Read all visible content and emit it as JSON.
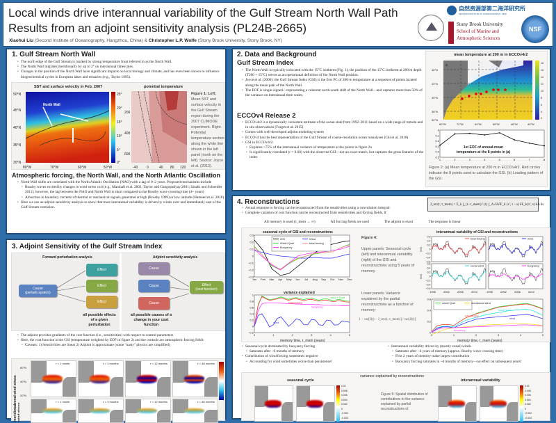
{
  "header": {
    "title_line1": "Local winds drive interannual variability of the Gulf Stream North Wall Path",
    "title_line2": "Results from an adjoint sensitivity analysis (PL24B-2665)",
    "author1": "Xiaohui Liu",
    "affil1": "(Second Institute of Oceanography, Hangzhou, China) &",
    "author2": "Christopher L.P. Wolfe",
    "affil2": "(Stony Brook University, Stony Brook, NY)",
    "logo_sio": "自然资源部第二海洋研究所",
    "logo_sio_en": "SECOND INSTITUTE OF OCEANOGRAPHY, MNR",
    "logo_sbu1": "Stony Brook University",
    "logo_sbu2": "School of Marine and",
    "logo_sbu3": "Atmospheric Sciences",
    "logo_nsf": "NSF"
  },
  "s1": {
    "heading": "1. Gulf Stream North Wall",
    "bullets": [
      "The north edge of the Gulf Stream is marked by strong temperature front referred to as the North Wall.",
      "The North Wall migrates meridionally by up to 2° on interannual timescales.",
      "Changes in the position of the North Wall have significant impacts on local biology and climate, and has even been shown to influence biogeochemical cycles in European lakes and estuaries (e.g., Taylor 1995)."
    ],
    "fig_left_title": "SST and surface velocity in Feb. 2007",
    "north_wall_label": "North Wall",
    "lat_ticks": [
      "50°N",
      "45°N",
      "40°N",
      "35°N",
      "30°N"
    ],
    "lon_ticks": [
      "80°W",
      "70°W",
      "60°W",
      "50°W"
    ],
    "cbar_ticks": [
      "25°",
      "20°",
      "15°",
      "10°",
      "5°",
      "0°"
    ],
    "fig_right_title": "potential temperature",
    "depth_ticks": [
      "200",
      "400",
      "600"
    ],
    "dist_ticks": [
      "-40",
      "0",
      "40",
      "80",
      "120"
    ],
    "caption_bold": "Figure 1: Left:",
    "caption": "Mean SST and surface velocity in the Gulf Stream region during the 2007 CLIMODE experiment. Right: Potential temperature section along the white line shown in the left panel (north on the left). Source: Joyce et al. (2013).",
    "sub_heading": "Atmospheric forcing, the North Wall, and the North Atlantic Oscillation",
    "bullets2": [
      "North Wall shifts are correlated with the North Atlantic Oscillation (NAO) with a lag of 0–2 years. Proposed mechanisms include"
    ],
    "subbullets2": [
      "Rossby waves excited by changes in wind stress curl (e.g., Marshall et al. 2001; Taylor and Gangopadyay 2001; Sasaki and Schneider 2011); however, the lag between the NAO and North Wall is short compared to the Rossby wave crossing time (4+ years)",
      "Advection in boundary currents of thermal or mechanical signals generated at high (Rossby 1999) or low latitude (Hameed et al. 2018)"
    ],
    "bullets3": [
      "Here we use an adjoint sensitivity analysis to show that most interannual variability is driven by winds over and immediately east of the Gulf Stream extension."
    ]
  },
  "s3": {
    "heading": "3. Adjoint Sensitivity of the Gulf Stream Index",
    "forward_title": "Forward perturbation analysis",
    "adjoint_title": "Adjoint sensitivity analysis",
    "cause_perturb": "Cause\n(perturb system)",
    "effect": "Effect",
    "cause": "Cause",
    "effect_cost": "Effect\n(cost function)",
    "forward_note": "all possible effects of a given perturbation",
    "adjoint_note": "all possible causes of a change in your cost function",
    "bullets": [
      "The adjoint provides gradients of the cost function (i.e., sensitivities) with respect to control parameters",
      "Here, the cost function is the GSI (temperature weighted by EOF in figure 2) and the controls are atmospheric forcing fields"
    ],
    "caveats": "Caveats: 1) Sensitivities are linear      2) Adjoint is approximate (some \"nasty\" physics are simplified)",
    "row_labels": [
      "zonal wind stress",
      "meridional wind stress"
    ],
    "lag_labels": [
      "τ = 1 month",
      "τ = 3 months",
      "τ = 12 months",
      "τ = 48 months"
    ],
    "lat_ticks": [
      "60°N",
      "40°N",
      "20°N"
    ]
  },
  "s2": {
    "heading": "2. Data and Background",
    "gsi_heading": "Gulf Stream Index",
    "gsi_bullets": [
      "The North Wall is typically colocated with the 15°C isotherm (Fig. 1); the position of the 15°C isotherm at 200 m depth (T200 = 15°C) serves as an operational definition of the North Wall position.",
      "Joyce et al. (2000): the Gulf Stream Index (GSI) is the first PC of 200-m temperature at a sequence of points located along the mean path of the North Wall.",
      "The EOF is single-signed—representing a coherent north-south shift of the North Wall—and captures more than 50% of the variance on interannual time scales."
    ],
    "ecco_heading": "ECCOv4 Release 2",
    "ecco_bullets": [
      "ECCOv4r2 is a dynamically consistent estimate of the ocean state from 1992–2011 based on a wide range of remote and in situ observations (Forget et al. 2015)",
      "Comes with well-developed adjoint modeling system",
      "ECCOv4 has the best representation of the Gulf Stream of coarse-resolution ocean reanalyses (Chi et al. 2018)",
      "GSI in ECCOv4r2:"
    ],
    "ecco_sub": [
      "Explains >75% of the interannual variance of temperature at the points in figure 2a",
      "Is significantly correlated (r = 0.60) with the observed GSI—not an exact match, but captures the gross features of the index"
    ],
    "map_title": "mean temperature at 200 m in ECCOv4r2",
    "map_panel": "a",
    "map_lat": [
      "48°N",
      "44°N",
      "40°N",
      "36°N",
      "32°N"
    ],
    "map_lon": [
      "80°W",
      "72°W",
      "64°W",
      "56°W",
      "48°W",
      "40°W"
    ],
    "map_cbar": [
      "18",
      "16",
      "14",
      "12",
      "10",
      "8",
      "6",
      "4",
      "2"
    ],
    "eof_note": "1st EOF of annual-mean temperature at the 8 points in (a)",
    "expvar": "ExpVar=78.7%",
    "panel_b": "b",
    "caption": "Figure 2: (a) Mean temperature at 200 m in ECCOv4r2. Red circles indicate the 8 points used to calculate the GSI. (b) Loading pattern of the GSI."
  },
  "s4": {
    "heading": "4. Reconstructions",
    "bullets": [
      "Actual response to forcing can be reconstructed from the sensitivities using a convolution integral:",
      "Complete variation of cost function can be reconstructed from sensitivities and forcing fields, if"
    ],
    "equation": "J_rec(t, τ_mem) = Σ_k ∫_{t−τ_mem}^{t} ∫_A ∂J/∂F_k (x′, t − s) δF_k(x′, s) dA ds",
    "conditions": [
      "All memory is used (τ_mem → ∞)",
      "All forcing fields are used",
      "The adjoint is exact",
      "The response is linear"
    ],
    "fig4_caption_title": "Figure 4:",
    "fig4_upper": "Upper panels: Seasonal cycle (left) and interannual variability (right) of the GSI and reconstructions using 5 years of memory.",
    "fig4_lower": "Lower panels: Variance explained by the partial reconstructions as a function of memory:",
    "fig4_formula": "1 − var[J(t) − J_rec(t, τ_mem)] / var[J(t)]",
    "interannual_title": "interannual variability of GSI and reconstructions",
    "ia_panels": [
      "total forcing",
      "wind",
      "zonal wind",
      "buoyancy"
    ],
    "ia_years": [
      "1998",
      "2002",
      "2006",
      "2010"
    ],
    "ia_ylabel": "GSI",
    "ia_yticks": [
      "0.6",
      "0.4",
      "0.2",
      "0",
      "−0.2",
      "−0.4",
      "−0.6"
    ],
    "left_bullets": [
      "Seasonal cycle dominated by buoyancy forcing"
    ],
    "left_sub1": [
      "Saturates after ~6 months of memory"
    ],
    "left_bullets2": [
      "Contribution of wind forcing sometimes negative"
    ],
    "left_sub2": [
      "Accounting for wind sometimes worse than persistence!"
    ],
    "right_bullets": [
      "Interannual variability driven by (mostly zonal) winds"
    ],
    "right_sub": [
      "Saturates after ~4 years of memory (approx. Rossby wave crossing time)",
      "First 2 years of memory make largest contribution",
      "Buoyancy forcing saturates in ~6 months of memory—no effect on subsequent years!"
    ],
    "fig5_seasonal": "seasonal cycle",
    "fig5_variance": "variance explained by reconstructions",
    "fig5_interannual": "interannual variability",
    "fig5_caption": "Figure 5: Spatial distribution of contributions to the variance explained by partial reconstructions of",
    "fig5_cbar": [
      "0.01",
      "0.008",
      "0.006",
      "0.004",
      "0.002",
      "0",
      "-0.002",
      "-0.004"
    ]
  },
  "colors": {
    "frame": "#2f6ea8",
    "panel_border": "#1d4f7f",
    "gsi": "#000000",
    "total": "#ff4444",
    "wind": "#3333ff",
    "buoyancy": "#ff33ff",
    "windqnet": "#33dd33",
    "zonal": "#33e0e0",
    "meridional": "#ffee33"
  },
  "chart_data": [
    {
      "id": "eof",
      "type": "line",
      "title": "1st EOF of annual-mean temperature at the 8 points in (a)",
      "x": [
        1,
        2,
        3,
        4,
        5,
        6,
        7,
        8
      ],
      "series": [
        {
          "name": "EOF1",
          "values": [
            0.22,
            0.43,
            0.44,
            0.41,
            0.45,
            0.32,
            0.26,
            0.21
          ]
        }
      ],
      "xlim": [
        1,
        8
      ],
      "ylim": [
        0,
        0.5
      ],
      "xticks": [
        "1",
        "2",
        "3",
        "4",
        "5",
        "6",
        "7",
        "8"
      ],
      "yticks": [
        "0",
        "0.1",
        "0.2",
        "0.3",
        "0.4",
        "0.5"
      ]
    },
    {
      "id": "seasonal",
      "type": "line",
      "title": "seasonal cycle of GSI and reconstructions",
      "categories": [
        "Jan",
        "Feb",
        "Mar",
        "Apr",
        "May",
        "Jun",
        "Jul",
        "Aug",
        "Sep",
        "Oct",
        "Nov",
        "Dec"
      ],
      "ylim": [
        -0.3,
        0.3
      ],
      "yticks": [
        "0.3",
        "0.2",
        "0.1",
        "0",
        "−0.1",
        "−0.2",
        "−0.3"
      ],
      "series": [
        {
          "name": "GSI",
          "color": "#000000",
          "values": [
            0.23,
            0.08,
            -0.18,
            -0.28,
            -0.25,
            -0.15,
            -0.05,
            0.05,
            0.12,
            0.17,
            0.2,
            0.22
          ]
        },
        {
          "name": "Wind",
          "color": "#3333ff",
          "values": [
            0.08,
            0.05,
            0.02,
            0.0,
            -0.01,
            -0.03,
            -0.03,
            -0.02,
            -0.03,
            -0.03,
            0.0,
            0.03
          ]
        },
        {
          "name": "Wind+Qnet",
          "color": "#33dd33",
          "values": [
            0.14,
            0.0,
            -0.14,
            -0.2,
            -0.11,
            -0.04,
            0.0,
            0.03,
            0.05,
            0.06,
            0.12,
            0.17
          ]
        },
        {
          "name": "total forcing",
          "color": "#ff8888",
          "values": [
            0.13,
            0.0,
            -0.13,
            -0.19,
            -0.1,
            -0.03,
            0.0,
            0.04,
            0.05,
            0.06,
            0.12,
            0.16
          ]
        },
        {
          "name": "Buoyancy",
          "color": "#ff33ff",
          "values": [
            0.1,
            -0.02,
            -0.12,
            -0.2,
            -0.1,
            0.0,
            0.03,
            0.05,
            0.06,
            0.08,
            0.1,
            0.14
          ]
        }
      ]
    },
    {
      "id": "var_seasonal",
      "type": "line",
      "title": "variance explained",
      "xlabel": "memory time, τ_mem (years)",
      "xlim": [
        0,
        5
      ],
      "ylim": [
        -0.2,
        1
      ],
      "xticks": [
        "0",
        "1",
        "2",
        "3",
        "4",
        "5"
      ],
      "yticks": [
        "1",
        "0.8",
        "0.6",
        "0.4",
        "0.2",
        "0",
        "−0.2"
      ],
      "x": [
        0,
        0.2,
        0.4,
        0.6,
        0.8,
        1,
        1.2,
        1.4,
        1.6,
        1.8,
        2,
        2.2,
        2.4,
        2.6,
        2.8,
        3,
        3.2,
        3.4,
        3.6,
        3.8,
        4,
        4.2,
        4.4,
        4.6,
        4.8,
        5
      ],
      "series": [
        {
          "name": "wind + Qnet",
          "color": "#33dd33",
          "values": [
            0,
            0.7,
            0.97,
            0.9,
            0.85,
            0.87,
            0.9,
            0.94,
            0.9,
            0.86,
            0.9,
            0.92,
            0.88,
            0.85,
            0.89,
            0.9,
            0.86,
            0.83,
            0.87,
            0.88,
            0.84,
            0.82,
            0.86,
            0.84,
            0.81,
            0.8
          ]
        },
        {
          "name": "total forcing",
          "color": "#ff3333",
          "values": [
            0,
            0.68,
            0.95,
            0.88,
            0.83,
            0.85,
            0.88,
            0.91,
            0.87,
            0.83,
            0.87,
            0.88,
            0.85,
            0.82,
            0.85,
            0.86,
            0.83,
            0.8,
            0.83,
            0.84,
            0.8,
            0.78,
            0.82,
            0.8,
            0.78,
            0.77
          ]
        },
        {
          "name": "buoyancy",
          "color": "#ff33ff",
          "values": [
            0,
            0.5,
            0.72,
            0.75,
            0.75,
            0.75,
            0.75,
            0.74,
            0.73,
            0.72,
            0.72,
            0.71,
            0.71,
            0.7,
            0.7,
            0.7,
            0.69,
            0.69,
            0.68,
            0.68,
            0.67,
            0.67,
            0.67,
            0.66,
            0.66,
            0.66
          ]
        },
        {
          "name": "wind",
          "color": "#3333ff",
          "values": [
            0,
            0.35,
            0.4,
            0.2,
            -0.02,
            0.05,
            0.25,
            0.3,
            0.15,
            0.0,
            0.1,
            0.24,
            0.2,
            0.05,
            0.05,
            0.22,
            0.2,
            0.05,
            0.03,
            0.2,
            0.18,
            0.04,
            0.05,
            0.17,
            0.15,
            0.13
          ]
        }
      ]
    },
    {
      "id": "var_interannual",
      "type": "line",
      "xlabel": "memory time, τ_mem (years)",
      "ylabel": "variance explained",
      "xlim": [
        0,
        5
      ],
      "ylim": [
        0,
        0.7
      ],
      "xticks": [
        "0",
        "1",
        "2",
        "3",
        "4",
        "5"
      ],
      "yticks": [
        "0.6",
        "0.4",
        "0.2",
        "0"
      ],
      "x": [
        0,
        0.25,
        0.5,
        0.75,
        1,
        1.5,
        2,
        2.5,
        3,
        3.5,
        4,
        4.3,
        4.6,
        5
      ],
      "series": [
        {
          "name": "wind+Qnet",
          "color": "#33dd33",
          "values": [
            0.02,
            0.14,
            0.17,
            0.17,
            0.15,
            0.3,
            0.4,
            0.47,
            0.54,
            0.57,
            0.6,
            0.61,
            0.57,
            0.5
          ]
        },
        {
          "name": "total forcing",
          "color": "#ff4444",
          "values": [
            0.02,
            0.14,
            0.17,
            0.17,
            0.15,
            0.3,
            0.39,
            0.46,
            0.53,
            0.56,
            0.59,
            0.6,
            0.56,
            0.49
          ]
        },
        {
          "name": "zonal wind",
          "color": "#33e0e0",
          "values": [
            0.0,
            0.1,
            0.13,
            0.13,
            0.12,
            0.25,
            0.32,
            0.38,
            0.42,
            0.46,
            0.48,
            0.49,
            0.45,
            0.36
          ]
        },
        {
          "name": "wind",
          "color": "#3333ff",
          "values": [
            0.0,
            0.09,
            0.12,
            0.12,
            0.1,
            0.2,
            0.28,
            0.31,
            0.33,
            0.35,
            0.37,
            0.38,
            0.35,
            0.29
          ]
        },
        {
          "name": "meridional wind",
          "color": "#eedd22",
          "values": [
            -0.04,
            0.0,
            0.05,
            0.08,
            0.1,
            0.12,
            0.14,
            0.16,
            0.17,
            0.18,
            0.18,
            0.18,
            0.17,
            0.15
          ]
        },
        {
          "name": "buoyancy",
          "color": "#ff33ff",
          "values": [
            0.0,
            0.07,
            0.1,
            0.1,
            0.1,
            0.11,
            0.12,
            0.13,
            0.14,
            0.15,
            0.16,
            0.16,
            0.15,
            0.14
          ]
        }
      ]
    }
  ]
}
